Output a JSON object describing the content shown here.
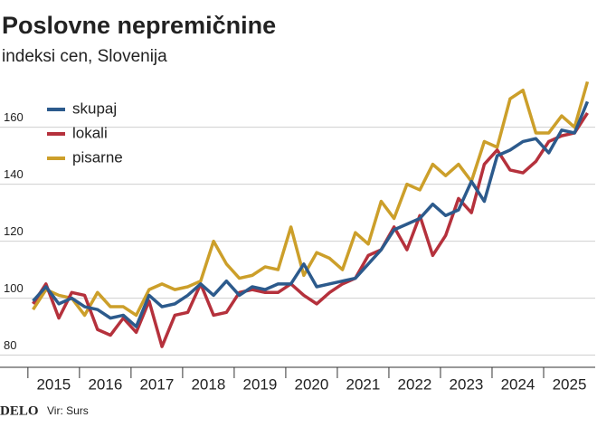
{
  "chart_data": {
    "type": "line",
    "title": "Poslovne nepremičnine",
    "subtitle": "indeksi cen, Slovenija",
    "source": "Vir: Surs",
    "brand": "DELO",
    "x": [
      2015,
      2015.25,
      2015.5,
      2015.75,
      2016,
      2016.25,
      2016.5,
      2016.75,
      2017,
      2017.25,
      2017.5,
      2017.75,
      2018,
      2018.25,
      2018.5,
      2018.75,
      2019,
      2019.25,
      2019.5,
      2019.75,
      2020,
      2020.25,
      2020.5,
      2020.75,
      2021,
      2021.25,
      2021.5,
      2021.75,
      2022,
      2022.25,
      2022.5,
      2022.75,
      2023,
      2023.25,
      2023.5,
      2023.75,
      2024,
      2024.25,
      2024.5,
      2024.75,
      2025,
      2025.25,
      2025.5,
      2025.75
    ],
    "series": [
      {
        "name": "skupaj",
        "color": "#2c5a8c",
        "values": [
          99,
          104,
          98,
          100,
          97,
          96,
          93,
          94,
          90,
          101,
          97,
          98,
          101,
          105,
          101,
          106,
          101,
          104,
          103,
          105,
          105,
          112,
          104,
          105,
          106,
          107,
          112,
          117,
          124,
          126,
          128,
          133,
          129,
          131,
          141,
          134,
          150,
          152,
          155,
          156,
          151,
          159,
          158,
          169
        ]
      },
      {
        "name": "lokali",
        "color": "#b5313c",
        "values": [
          98,
          105,
          93,
          102,
          101,
          89,
          87,
          93,
          88,
          99,
          83,
          94,
          95,
          105,
          94,
          95,
          102,
          103,
          102,
          102,
          105,
          101,
          98,
          102,
          105,
          107,
          115,
          117,
          125,
          117,
          129,
          115,
          122,
          135,
          130,
          147,
          152,
          145,
          144,
          148,
          155,
          157,
          158,
          165
        ]
      },
      {
        "name": "pisarne",
        "color": "#cc9f2a",
        "values": [
          96,
          103,
          101,
          100,
          94,
          102,
          97,
          97,
          94,
          103,
          105,
          103,
          104,
          106,
          120,
          112,
          107,
          108,
          111,
          110,
          125,
          108,
          116,
          114,
          110,
          123,
          119,
          134,
          128,
          140,
          138,
          147,
          143,
          147,
          141,
          155,
          153,
          170,
          173,
          158,
          158,
          164,
          160,
          176
        ]
      }
    ],
    "xlim": [
      2014.85,
      2025.9
    ],
    "xticks": [
      2015,
      2016,
      2017,
      2018,
      2019,
      2020,
      2021,
      2022,
      2023,
      2024,
      2025
    ],
    "ylim": [
      77,
      178
    ],
    "yticks": [
      80,
      100,
      120,
      140,
      160
    ],
    "grid": true,
    "legend": "top-left"
  }
}
